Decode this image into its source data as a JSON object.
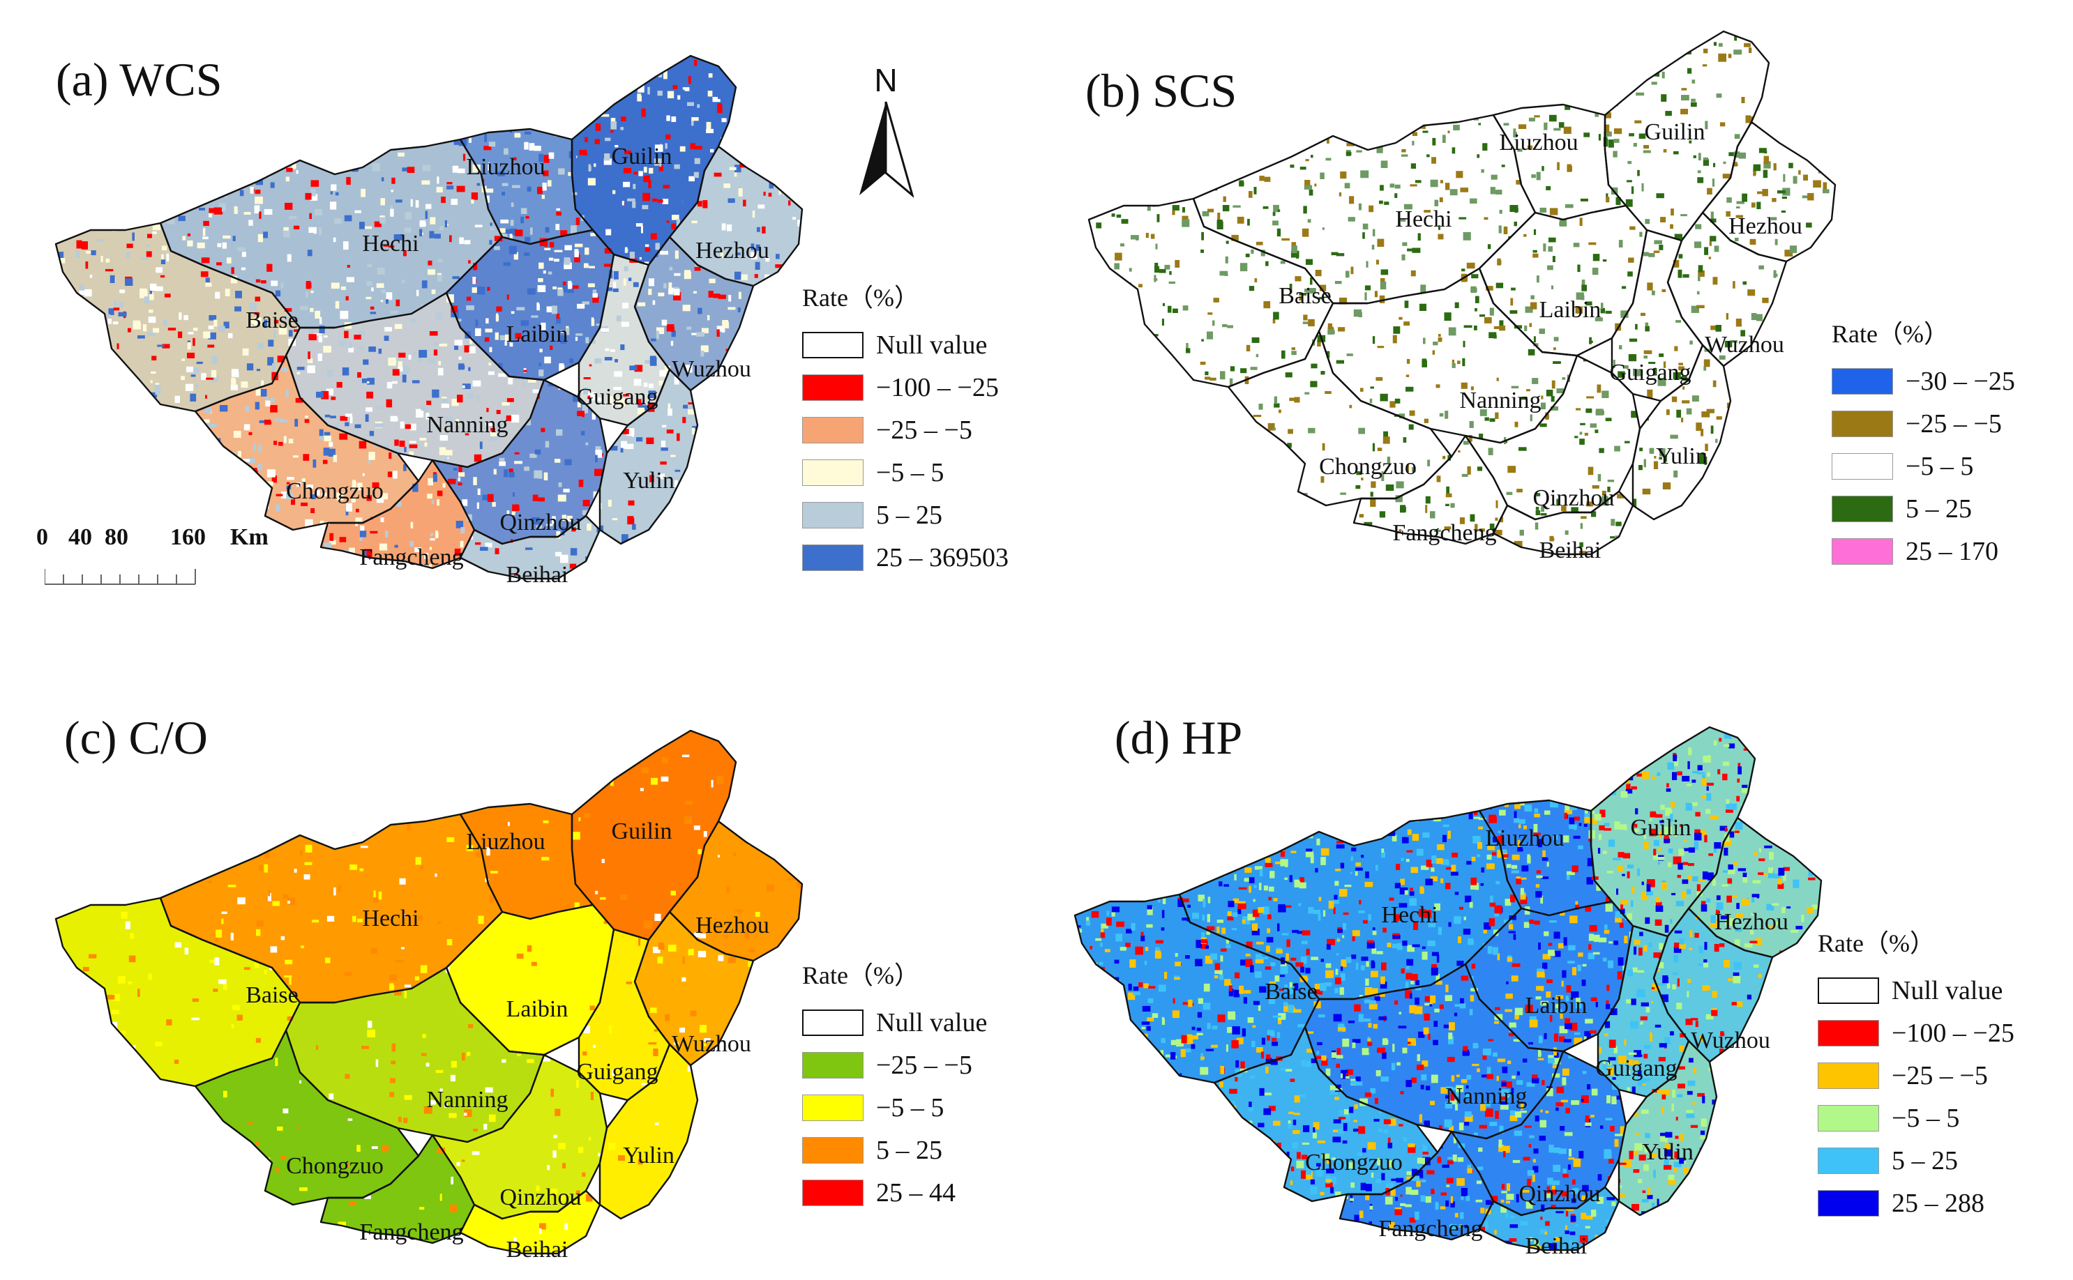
{
  "panels": [
    {
      "id": "a",
      "title": "(a) WCS",
      "legend": {
        "title": "Rate（%）",
        "items": [
          {
            "label": "Null value",
            "color": "#ffffff",
            "null": true
          },
          {
            "label": "−100 – −25",
            "color": "#ff0000"
          },
          {
            "label": "−25 – −5",
            "color": "#f7a474"
          },
          {
            "label": "−5 – 5",
            "color": "#fffbd9"
          },
          {
            "label": "5 – 25",
            "color": "#b8ccd9"
          },
          {
            "label": "25 – 369503",
            "color": "#3d6fcc"
          }
        ]
      }
    },
    {
      "id": "b",
      "title": "(b) SCS",
      "legend": {
        "title": "Rate（%）",
        "items": [
          {
            "label": "−30 – −25",
            "color": "#1f63ea"
          },
          {
            "label": "−25 – −5",
            "color": "#9b7a16"
          },
          {
            "label": "−5 – 5",
            "color": "#ffffff"
          },
          {
            "label": "5 – 25",
            "color": "#2c6b12"
          },
          {
            "label": "25 – 170",
            "color": "#ff6fd8"
          }
        ]
      }
    },
    {
      "id": "c",
      "title": "(c) C/O",
      "legend": {
        "title": "Rate（%）",
        "items": [
          {
            "label": "Null value",
            "color": "#ffffff",
            "null": true
          },
          {
            "label": "−25 – −5",
            "color": "#7ec60f"
          },
          {
            "label": "−5 – 5",
            "color": "#ffff00"
          },
          {
            "label": "5 – 25",
            "color": "#ff8a00"
          },
          {
            "label": "25 – 44",
            "color": "#ff0000"
          }
        ]
      }
    },
    {
      "id": "d",
      "title": "(d) HP",
      "legend": {
        "title": "Rate（%）",
        "items": [
          {
            "label": "Null value",
            "color": "#ffffff",
            "null": true
          },
          {
            "label": "−100 – −25",
            "color": "#ff0000"
          },
          {
            "label": "−25 – −5",
            "color": "#ffc400"
          },
          {
            "label": "−5 – 5",
            "color": "#b2f78a"
          },
          {
            "label": "5 – 25",
            "color": "#3fc2f7"
          },
          {
            "label": "25 – 288",
            "color": "#0000ee"
          }
        ]
      }
    }
  ],
  "cities": [
    "Guilin",
    "Liuzhou",
    "Hechi",
    "Hezhou",
    "Baise",
    "Laibin",
    "Wuzhou",
    "Guigang",
    "Nanning",
    "Yulin",
    "Chongzuo",
    "Qinzhou",
    "Fangcheng",
    "Beihai"
  ],
  "city_colors": {
    "a": {
      "Guilin": "#3d6fcc",
      "Liuzhou": "#6d95d3",
      "Hechi": "#a9bfd3",
      "Hezhou": "#b8ccd9",
      "Baise": "#d6cdb3",
      "Laibin": "#5c84cf",
      "Wuzhou": "#8ea9d1",
      "Guigang": "#d9dfdc",
      "Nanning": "#c7cdd2",
      "Yulin": "#b8ccd9",
      "Chongzuo": "#f3b487",
      "Qinzhou": "#6d8fd1",
      "Fangcheng": "#f7a474",
      "Beihai": "#b8ccd9"
    },
    "b": {
      "Guilin": "#ffffff",
      "Liuzhou": "#ffffff",
      "Hechi": "#ffffff",
      "Hezhou": "#ffffff",
      "Baise": "#ffffff",
      "Laibin": "#ffffff",
      "Wuzhou": "#ffffff",
      "Guigang": "#ffffff",
      "Nanning": "#ffffff",
      "Yulin": "#ffffff",
      "Chongzuo": "#ffffff",
      "Qinzhou": "#ffffff",
      "Fangcheng": "#ffffff",
      "Beihai": "#ffffff"
    },
    "c": {
      "Guilin": "#ff7a00",
      "Liuzhou": "#ff8a00",
      "Hechi": "#ff9a00",
      "Hezhou": "#ff9a00",
      "Baise": "#e6f000",
      "Laibin": "#ffff00",
      "Wuzhou": "#ffae00",
      "Guigang": "#ffee00",
      "Nanning": "#b9de10",
      "Yulin": "#ffee00",
      "Chongzuo": "#7ec60f",
      "Qinzhou": "#d9ec10",
      "Fangcheng": "#7ec60f",
      "Beihai": "#ffff00"
    },
    "d": {
      "Guilin": "#86d6c4",
      "Liuzhou": "#2f86f2",
      "Hechi": "#2f9af0",
      "Hezhou": "#86d6c4",
      "Baise": "#2f9af0",
      "Laibin": "#2f86f2",
      "Wuzhou": "#5ec9e0",
      "Guigang": "#5ec9e0",
      "Nanning": "#2f86f2",
      "Yulin": "#86d6c4",
      "Chongzuo": "#3fb2f0",
      "Qinzhou": "#2f86f2",
      "Fangcheng": "#2f86f2",
      "Beihai": "#3fb2f0"
    }
  },
  "scale_bar": {
    "labels": [
      "0",
      "40",
      "80",
      "160",
      "Km"
    ]
  },
  "north_arrow": {
    "letter": "N"
  }
}
